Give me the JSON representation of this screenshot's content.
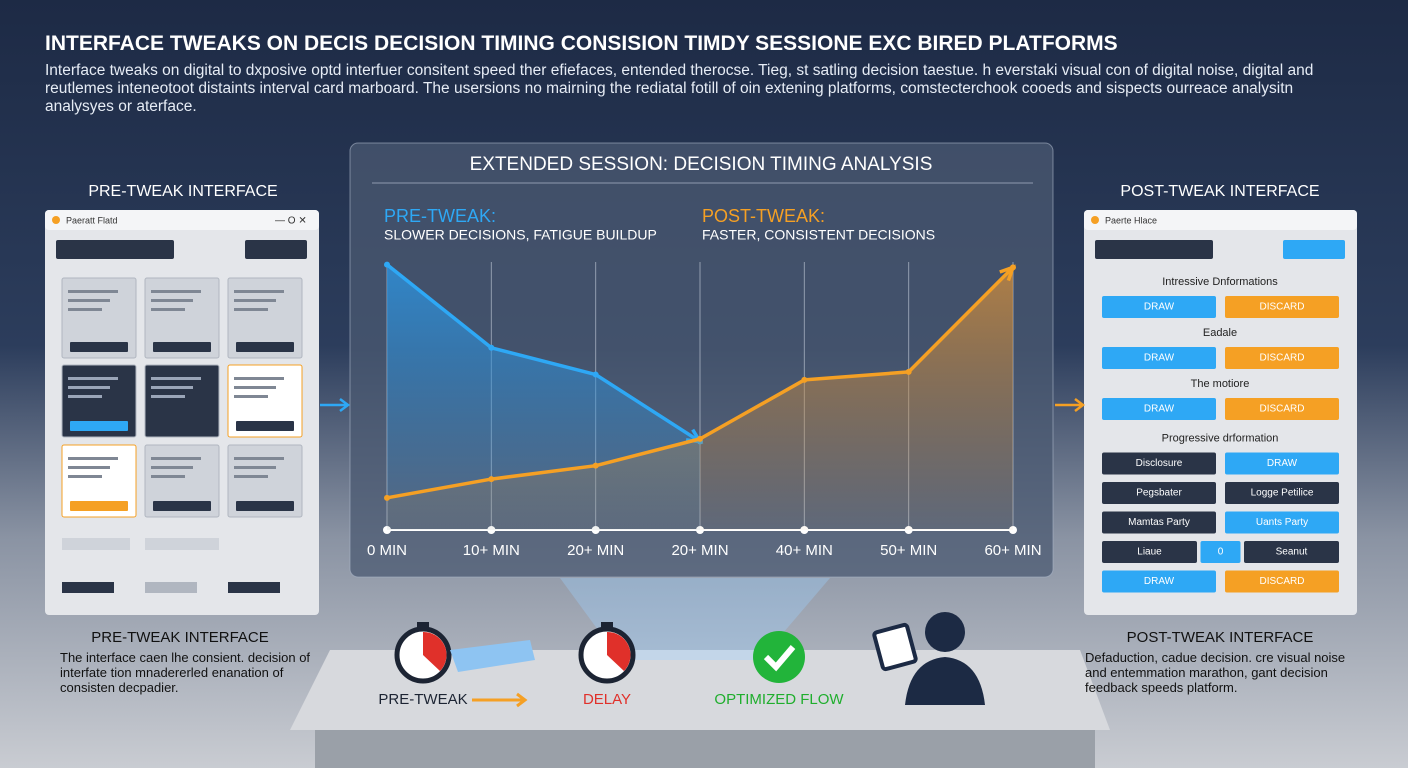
{
  "header": {
    "title": "INTERFACE TWEAKS ON DECIS DECISION TIMING CONSISION TIMDY SESSIONE EXC BIRED PLATFORMS",
    "text": "Interface tweaks on digital to dxposive optd interfuer consitent speed ther efiefaces, entended therocse. Tieg, st satling decision taestue. h everstaki visual con of digital noise, digital and reutlemes inteneotoot distaints interval card marboard. The usersions no mairning the rediatal fotill of oin extening platforms, comstecterchook cooeds and sispects ourreace analysitn analysyes or aterface."
  },
  "left_panel": {
    "heading": "PRE-TWEAK INTERFACE",
    "window_title": "Paeratt Flatd",
    "caption_title": "PRE-TWEAK INTERFACE",
    "caption": "The interface caen lhe consient. decision of interfate tion mnadererled enanation of consisten decpadier."
  },
  "right_panel": {
    "heading": "POST-TWEAK INTERFACE",
    "window_title": "Paerte Hlace",
    "caption_title": "POST-TWEAK INTERFACE",
    "caption": "Defaduction, cadue decision. cre visual noise and entemmation marathon, gant decision feedback speeds platform.",
    "sections": [
      {
        "label": "Intressive Dnformations"
      },
      {
        "buttons": [
          {
            "text": "DRAW",
            "style": "blue"
          },
          {
            "text": "DISCARD",
            "style": "orange"
          }
        ]
      },
      {
        "label": "Eadale"
      },
      {
        "buttons": [
          {
            "text": "DRAW",
            "style": "blue"
          },
          {
            "text": "DISCARD",
            "style": "orange"
          }
        ]
      },
      {
        "label": "The motiore"
      },
      {
        "buttons": [
          {
            "text": "DRAW",
            "style": "blue"
          },
          {
            "text": "DISCARD",
            "style": "orange"
          }
        ]
      },
      {
        "label": "Progressive drformation"
      },
      {
        "buttons": [
          {
            "text": "Disclosure",
            "style": "dark"
          },
          {
            "text": "DRAW",
            "style": "blue"
          }
        ]
      },
      {
        "buttons": [
          {
            "text": "Pegsbater",
            "style": "dark"
          },
          {
            "text": "Logge Petilice",
            "style": "dark"
          }
        ]
      },
      {
        "buttons": [
          {
            "text": "Mamtas Party",
            "style": "dark"
          },
          {
            "text": "Uants Party",
            "style": "blue"
          }
        ]
      },
      {
        "buttons": [
          {
            "text": "Liaue",
            "style": "dark"
          },
          {
            "text": "0",
            "style": "blue"
          },
          {
            "text": "Seanut",
            "style": "dark"
          }
        ]
      },
      {
        "buttons": [
          {
            "text": "DRAW",
            "style": "blue"
          },
          {
            "text": "DISCARD",
            "style": "orange"
          }
        ]
      }
    ]
  },
  "chart_data": {
    "type": "line",
    "title": "EXTENDED SESSION: DECISION TIMING ANALYSIS",
    "annotations": [
      {
        "heading": "PRE-TWEAK:",
        "text": "SLOWER DECISIONS, FATIGUE BUILDUP",
        "color": "#2ea8f5"
      },
      {
        "heading": "POST-TWEAK:",
        "text": "FASTER, CONSISTENT DECISIONS",
        "color": "#f5a024"
      }
    ],
    "categories": [
      "0 MIN",
      "10+ MIN",
      "20+ MIN",
      "20+ MIN",
      "40+ MIN",
      "50+ MIN",
      "60+ MIN"
    ],
    "ylim": [
      0,
      100
    ],
    "series": [
      {
        "name": "PRE-TWEAK",
        "color": "#2ea8f5",
        "values": [
          99,
          68,
          58,
          33,
          null,
          null,
          null
        ]
      },
      {
        "name": "POST-TWEAK",
        "color": "#f5a024",
        "values": [
          12,
          19,
          24,
          34,
          56,
          59,
          98
        ]
      }
    ]
  },
  "flow": {
    "steps": [
      {
        "text": "PRE-TWEAK",
        "color": "#1c2433"
      },
      {
        "text": "DELAY",
        "color": "#e0302a"
      },
      {
        "text": "OPTIMIZED FLOW",
        "color": "#1fae2d"
      }
    ]
  }
}
